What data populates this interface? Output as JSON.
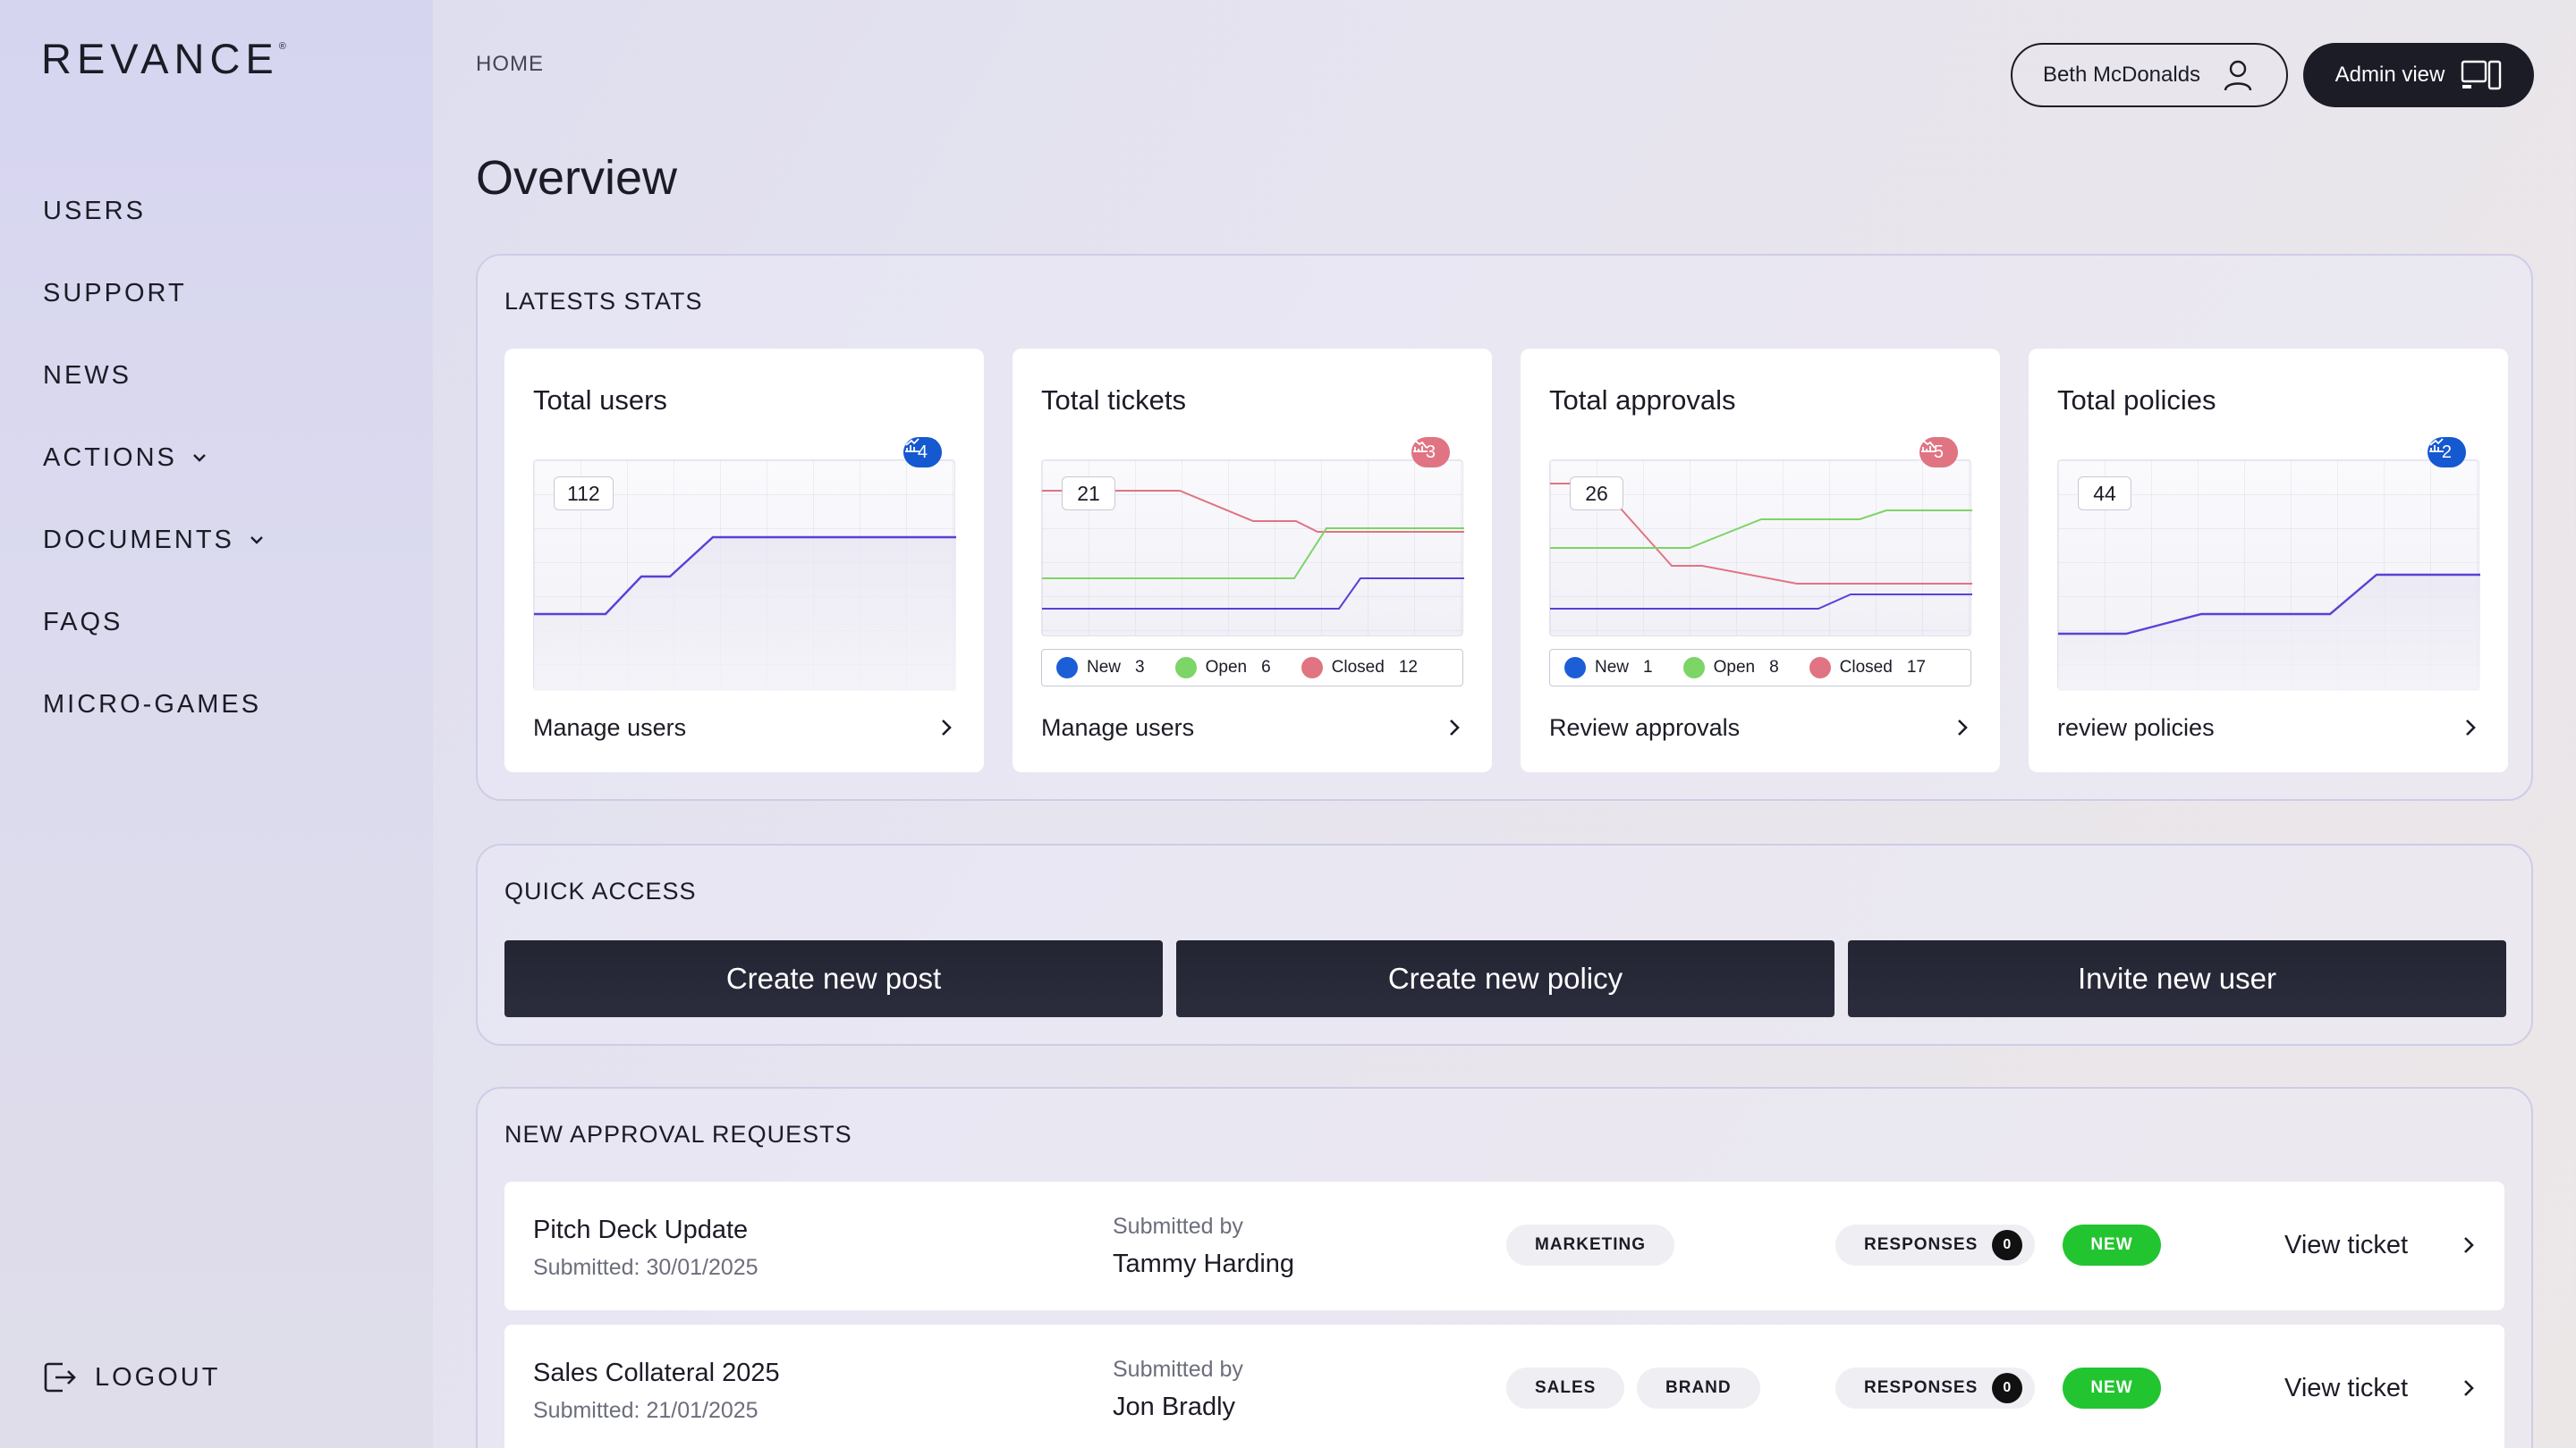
{
  "brand": {
    "name": "REVANCE",
    "mark": "®"
  },
  "sidebar": {
    "items": [
      {
        "label": "USERS"
      },
      {
        "label": "SUPPORT"
      },
      {
        "label": "NEWS"
      },
      {
        "label": "ACTIONS"
      },
      {
        "label": "DOCUMENTS"
      },
      {
        "label": "FAQS"
      },
      {
        "label": "MICRO-GAMES"
      }
    ],
    "logout": "LOGOUT"
  },
  "header": {
    "breadcrumb": "HOME",
    "title": "Overview",
    "user_name": "Beth McDonalds",
    "admin_label": "Admin view"
  },
  "stats": {
    "title": "LATESTS STATS",
    "cards": [
      {
        "title": "Total users",
        "value": "112",
        "trend": "up",
        "badge": "4",
        "link": "Manage users"
      },
      {
        "title": "Total tickets",
        "value": "21",
        "trend": "down",
        "badge": "3",
        "link": "Manage users",
        "legend": [
          {
            "label": "New",
            "value": "3"
          },
          {
            "label": "Open",
            "value": "6"
          },
          {
            "label": "Closed",
            "value": "12"
          }
        ]
      },
      {
        "title": "Total approvals",
        "value": "26",
        "trend": "down",
        "badge": "5",
        "link": "Review approvals",
        "legend": [
          {
            "label": "New",
            "value": "1"
          },
          {
            "label": "Open",
            "value": "8"
          },
          {
            "label": "Closed",
            "value": "17"
          }
        ]
      },
      {
        "title": "Total policies",
        "value": "44",
        "trend": "up",
        "badge": "2",
        "link": "review policies"
      }
    ]
  },
  "colors": {
    "new": "#1c5ed6",
    "open": "#7dd467",
    "closed": "#e07483",
    "users_line": "#5b3fd6"
  },
  "quick_access": {
    "title": "QUICK ACCESS",
    "buttons": [
      "Create new post",
      "Create new policy",
      "Invite new user"
    ]
  },
  "approvals": {
    "title": "NEW APPROVAL REQUESTS",
    "submitted_by_label": "Submitted by",
    "responses_label": "RESPONSES",
    "view_label": "View ticket",
    "rows": [
      {
        "title": "Pitch Deck Update",
        "date": "Submitted: 30/01/2025",
        "submitter": "Tammy Harding",
        "tags": [
          "MARKETING"
        ],
        "responses": "0",
        "status": "NEW"
      },
      {
        "title": "Sales Collateral 2025",
        "date": "Submitted: 21/01/2025",
        "submitter": "Jon Bradly",
        "tags": [
          "SALES",
          "BRAND"
        ],
        "responses": "0",
        "status": "NEW"
      }
    ]
  }
}
